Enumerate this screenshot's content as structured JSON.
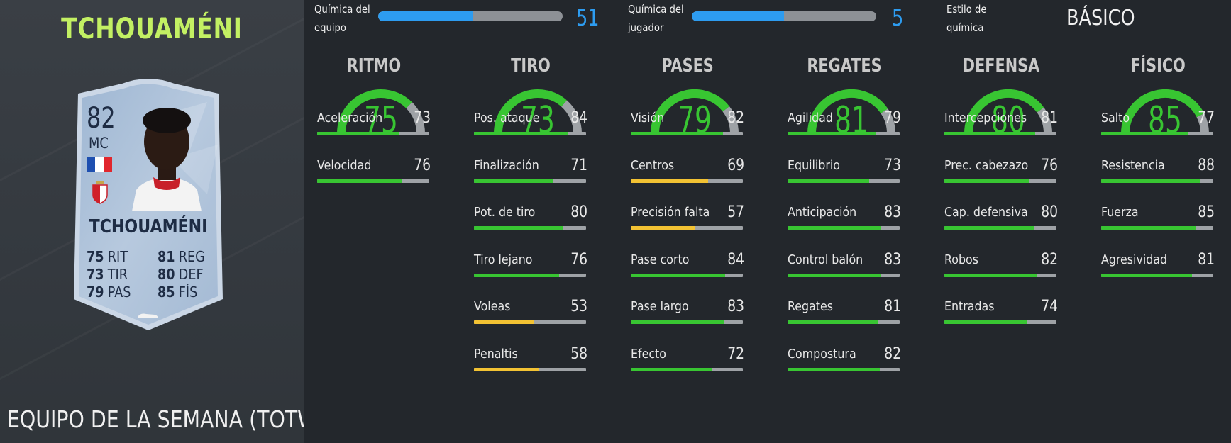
{
  "player": {
    "name": "TCHOUAMÉNI",
    "section": "EQUIPO DE LA SEMANA (TOTW)"
  },
  "card": {
    "rating": "82",
    "position": "MC",
    "name": "TCHOUAMÉNI",
    "stats": [
      {
        "value": "75",
        "label": "RIT"
      },
      {
        "value": "73",
        "label": "TIR"
      },
      {
        "value": "79",
        "label": "PAS"
      },
      {
        "value": "81",
        "label": "REG"
      },
      {
        "value": "80",
        "label": "DEF"
      },
      {
        "value": "85",
        "label": "FÍS"
      }
    ]
  },
  "chemistry": {
    "team": {
      "label_line1": "Química del",
      "label_line2": "equipo",
      "value": "51",
      "fraction": 0.51
    },
    "player": {
      "label_line1": "Química del",
      "label_line2": "jugador",
      "value": "5",
      "fraction": 0.5
    },
    "style": {
      "label_line1": "Estilo de",
      "label_line2": "química",
      "value": "BÁSICO"
    }
  },
  "colors": {
    "green": "#38c532",
    "yellow": "#f2c233",
    "blue": "#2d9cf0",
    "title_green": "#c3f063"
  },
  "columns": [
    {
      "title": "RITMO",
      "value": "75",
      "attributes": [
        {
          "label": "Aceleración",
          "value": "73"
        },
        {
          "label": "Velocidad",
          "value": "76"
        }
      ]
    },
    {
      "title": "TIRO",
      "value": "73",
      "attributes": [
        {
          "label": "Pos. ataque",
          "value": "84"
        },
        {
          "label": "Finalización",
          "value": "71"
        },
        {
          "label": "Pot. de tiro",
          "value": "80"
        },
        {
          "label": "Tiro lejano",
          "value": "76"
        },
        {
          "label": "Voleas",
          "value": "53"
        },
        {
          "label": "Penaltis",
          "value": "58"
        }
      ]
    },
    {
      "title": "PASES",
      "value": "79",
      "attributes": [
        {
          "label": "Visión",
          "value": "82"
        },
        {
          "label": "Centros",
          "value": "69"
        },
        {
          "label": "Precisión falta",
          "value": "57"
        },
        {
          "label": "Pase corto",
          "value": "84"
        },
        {
          "label": "Pase largo",
          "value": "83"
        },
        {
          "label": "Efecto",
          "value": "72"
        }
      ]
    },
    {
      "title": "REGATES",
      "value": "81",
      "attributes": [
        {
          "label": "Agilidad",
          "value": "79"
        },
        {
          "label": "Equilibrio",
          "value": "73"
        },
        {
          "label": "Anticipación",
          "value": "83"
        },
        {
          "label": "Control balón",
          "value": "83"
        },
        {
          "label": "Regates",
          "value": "81"
        },
        {
          "label": "Compostura",
          "value": "82"
        }
      ]
    },
    {
      "title": "DEFENSA",
      "value": "80",
      "attributes": [
        {
          "label": "Intercepciones",
          "value": "81"
        },
        {
          "label": "Prec. cabezazo",
          "value": "76"
        },
        {
          "label": "Cap. defensiva",
          "value": "80"
        },
        {
          "label": "Robos",
          "value": "82"
        },
        {
          "label": "Entradas",
          "value": "74"
        }
      ]
    },
    {
      "title": "FÍSICO",
      "value": "85",
      "attributes": [
        {
          "label": "Salto",
          "value": "77"
        },
        {
          "label": "Resistencia",
          "value": "88"
        },
        {
          "label": "Fuerza",
          "value": "85"
        },
        {
          "label": "Agresividad",
          "value": "81"
        }
      ]
    }
  ]
}
